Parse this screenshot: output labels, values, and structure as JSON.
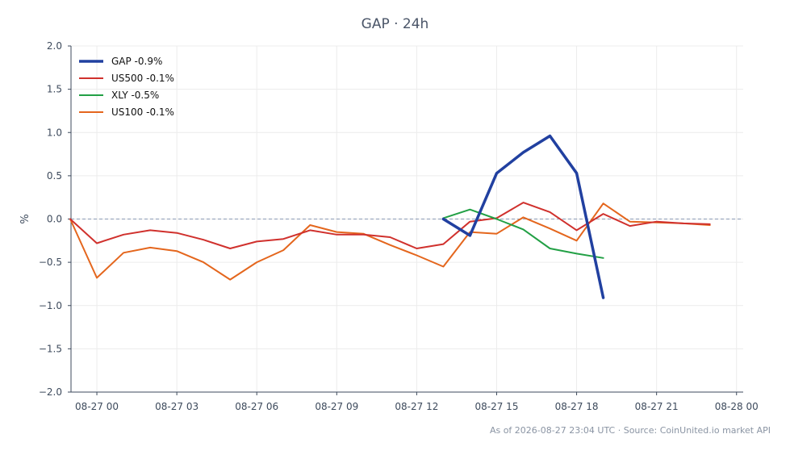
{
  "chart_data": {
    "type": "line",
    "title": "GAP · 24h",
    "xlabel": "",
    "ylabel": "%",
    "ylim": [
      -2.0,
      2.0
    ],
    "xlim": [
      -0.97,
      24.25
    ],
    "x_tick_positions": [
      0,
      3,
      6,
      9,
      12,
      15,
      18,
      21,
      24
    ],
    "x_tick_labels": [
      "08-27 00",
      "08-27 03",
      "08-27 06",
      "08-27 09",
      "08-27 12",
      "08-27 15",
      "08-27 18",
      "08-27 21",
      "08-28 00"
    ],
    "y_ticks": [
      -2.0,
      -1.5,
      -1.0,
      -0.5,
      0.0,
      0.5,
      1.0,
      1.5,
      2.0
    ],
    "y_tick_labels": [
      "−2.0",
      "−1.5",
      "−1.0",
      "−0.5",
      "0.0",
      "0.5",
      "1.0",
      "1.5",
      "2.0"
    ],
    "grid": true,
    "zero_line": true,
    "legend_position": "top-left",
    "series": [
      {
        "name": "GAP -0.9%",
        "color": "#2140a0",
        "width": 3.5,
        "x": [
          13,
          14,
          15,
          16,
          17,
          18,
          19
        ],
        "y": [
          0.0,
          -0.19,
          0.53,
          0.77,
          0.96,
          0.53,
          -0.91
        ]
      },
      {
        "name": "US500 -0.1%",
        "color": "#d0312d",
        "width": 2,
        "x": [
          -1,
          0,
          1,
          2,
          3,
          4,
          5,
          6,
          7,
          8,
          9,
          10,
          11,
          12,
          13,
          14,
          15,
          16,
          17,
          18,
          19,
          20,
          21,
          22,
          23
        ],
        "y": [
          0.0,
          -0.28,
          -0.18,
          -0.13,
          -0.16,
          -0.24,
          -0.34,
          -0.26,
          -0.23,
          -0.13,
          -0.18,
          -0.18,
          -0.21,
          -0.34,
          -0.29,
          -0.03,
          0.01,
          0.19,
          0.08,
          -0.13,
          0.06,
          -0.08,
          -0.03,
          -0.05,
          -0.06
        ]
      },
      {
        "name": "XLY -0.5%",
        "color": "#22a045",
        "width": 2,
        "x": [
          13,
          14,
          15,
          16,
          17,
          18,
          19
        ],
        "y": [
          0.01,
          0.11,
          0.0,
          -0.12,
          -0.34,
          -0.4,
          -0.45
        ]
      },
      {
        "name": "US100 -0.1%",
        "color": "#e4661d",
        "width": 2,
        "x": [
          -1,
          0,
          1,
          2,
          3,
          4,
          5,
          6,
          7,
          8,
          9,
          10,
          11,
          12,
          13,
          14,
          15,
          16,
          17,
          18,
          19,
          20,
          21,
          22,
          23
        ],
        "y": [
          0.0,
          -0.68,
          -0.39,
          -0.33,
          -0.37,
          -0.5,
          -0.7,
          -0.5,
          -0.36,
          -0.07,
          -0.15,
          -0.17,
          -0.3,
          -0.42,
          -0.55,
          -0.15,
          -0.17,
          0.02,
          -0.11,
          -0.25,
          0.18,
          -0.03,
          -0.04,
          -0.05,
          -0.07
        ]
      }
    ]
  },
  "footer": {
    "note": "As of 2026-08-27 23:04 UTC · Source: CoinUnited.io market API"
  }
}
